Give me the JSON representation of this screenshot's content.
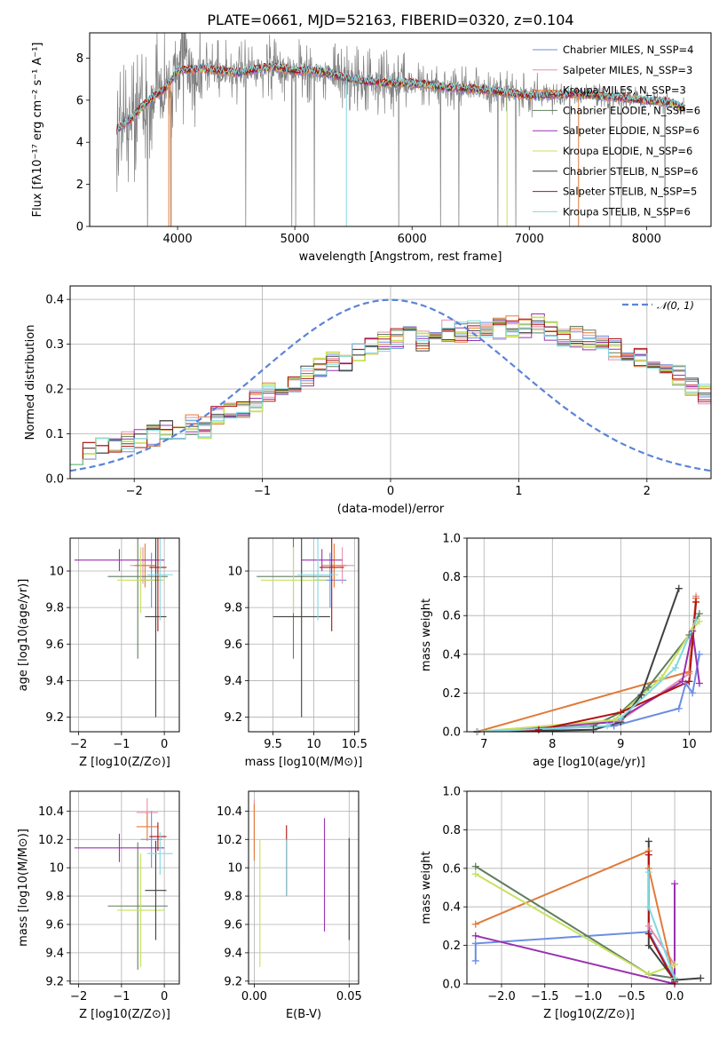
{
  "figure": {
    "title": "PLATE=0661, MJD=52163, FIBERID=0320, z=0.104"
  },
  "colors": {
    "chabrier_miles": "#6b8de3",
    "salpeter_miles": "#e68fac",
    "kroupa_miles": "#e07b39",
    "chabrier_elodie": "#5f7f5f",
    "salpeter_elodie": "#9b30b0",
    "kroupa_elodie": "#c8e060",
    "chabrier_stelib": "#404040",
    "salpeter_stelib": "#b01010",
    "kroupa_stelib": "#80d8e0",
    "gaussian": "#5b84d8",
    "data_spectrum": "#808080"
  },
  "chart_data": [
    {
      "id": "spectrum",
      "type": "line",
      "title": "PLATE=0661, MJD=52163, FIBERID=0320, z=0.104",
      "xlabel": "wavelength [Angstrom, rest frame]",
      "ylabel": "Flux [fλ10⁻¹⁷ erg cm⁻² s⁻¹ A⁻¹]",
      "xlim": [
        3250,
        8550
      ],
      "ylim": [
        0,
        9.2
      ],
      "xticks": [
        4000,
        5000,
        6000,
        7000,
        8000
      ],
      "yticks": [
        0,
        2,
        4,
        6,
        8
      ],
      "legend_position": "top-right",
      "legend": [
        {
          "label": "Chabrier MILES, N_SSP=4",
          "color": "#6b8de3"
        },
        {
          "label": "Salpeter MILES, N_SSP=3",
          "color": "#e68fac"
        },
        {
          "label": "Kroupa MILES, N_SSP=3",
          "color": "#e07b39"
        },
        {
          "label": "Chabrier ELODIE, N_SSP=6",
          "color": "#5f7f5f"
        },
        {
          "label": "Salpeter ELODIE, N_SSP=6",
          "color": "#9b30b0"
        },
        {
          "label": "Kroupa ELODIE, N_SSP=6",
          "color": "#c8e060"
        },
        {
          "label": "Chabrier STELIB, N_SSP=6",
          "color": "#404040"
        },
        {
          "label": "Salpeter STELIB, N_SSP=5",
          "color": "#b01010"
        },
        {
          "label": "Kroupa STELIB, N_SSP=6",
          "color": "#80d8e0"
        }
      ],
      "continuum": {
        "x": [
          3480,
          3600,
          3700,
          3800,
          3900,
          4000,
          4200,
          4500,
          4800,
          5000,
          5200,
          5400,
          5600,
          5800,
          6000,
          6300,
          6600,
          7000,
          7400,
          7800,
          8200,
          8330
        ],
        "y": [
          4.6,
          5.1,
          5.7,
          6.2,
          6.6,
          7.4,
          7.5,
          7.3,
          7.6,
          7.4,
          7.4,
          7.1,
          6.9,
          6.8,
          6.8,
          6.6,
          6.5,
          6.2,
          6.3,
          6.1,
          5.9,
          5.6
        ]
      },
      "data_x_range": [
        3480,
        8330
      ],
      "model_x_range": [
        3480,
        8330
      ]
    },
    {
      "id": "residuals",
      "type": "histogram",
      "xlabel": "(data-model)/error",
      "ylabel": "Normed distribution",
      "xlim": [
        -2.5,
        2.5
      ],
      "ylim": [
        0,
        0.43
      ],
      "xticks": [
        -2,
        -1,
        0,
        1,
        2
      ],
      "yticks": [
        0.0,
        0.1,
        0.2,
        0.3,
        0.4
      ],
      "grid": true,
      "legend_position": "top-right",
      "gaussian_label": "𝒩(0, 1)",
      "bin_width": 0.1,
      "bin_start": -2.5,
      "reference_values": [
        0.055,
        0.065,
        0.07,
        0.075,
        0.08,
        0.085,
        0.095,
        0.11,
        0.1,
        0.12,
        0.115,
        0.14,
        0.15,
        0.16,
        0.175,
        0.195,
        0.205,
        0.21,
        0.23,
        0.25,
        0.26,
        0.265,
        0.28,
        0.3,
        0.305,
        0.31,
        0.315,
        0.31,
        0.32,
        0.33,
        0.325,
        0.33,
        0.34,
        0.335,
        0.34,
        0.335,
        0.35,
        0.33,
        0.32,
        0.315,
        0.31,
        0.3,
        0.29,
        0.28,
        0.27,
        0.26,
        0.245,
        0.23,
        0.205,
        0.19
      ]
    },
    {
      "id": "z_vs_age",
      "type": "scatter",
      "xlabel": "Z [log10(Z/Z⊙)]",
      "ylabel": "age  [log10(age/yr)]",
      "xlim": [
        -2.2,
        0.35
      ],
      "ylim": [
        9.12,
        10.18
      ],
      "xticks": [
        -2,
        -1,
        0
      ],
      "yticks": [
        9.2,
        9.4,
        9.6,
        9.8,
        10.0
      ],
      "grid": true,
      "points": [
        {
          "model": "chabrier_miles",
          "x": -0.3,
          "y": 9.95,
          "xerr": 0.25,
          "yerr": 0.15
        },
        {
          "model": "salpeter_miles",
          "x": -0.5,
          "y": 10.03,
          "xerr": 0.3,
          "yerr": 0.1
        },
        {
          "model": "kroupa_miles",
          "x": -0.45,
          "y": 10.03,
          "xerr": 0.25,
          "yerr": 0.12
        },
        {
          "model": "chabrier_elodie",
          "x": -0.62,
          "y": 9.97,
          "xerr": 0.7,
          "yerr": 0.45
        },
        {
          "model": "salpeter_elodie",
          "x": -1.05,
          "y": 10.06,
          "xerr": 1.05,
          "yerr": 0.06
        },
        {
          "model": "kroupa_elodie",
          "x": -0.55,
          "y": 9.95,
          "xerr": 0.55,
          "yerr": 0.18
        },
        {
          "model": "chabrier_stelib",
          "x": -0.2,
          "y": 9.75,
          "xerr": 0.25,
          "yerr": 0.55
        },
        {
          "model": "salpeter_stelib",
          "x": -0.15,
          "y": 10.02,
          "xerr": 0.2,
          "yerr": 0.35
        },
        {
          "model": "kroupa_stelib",
          "x": -0.1,
          "y": 9.98,
          "xerr": 0.3,
          "yerr": 0.25
        }
      ]
    },
    {
      "id": "mass_vs_age",
      "type": "scatter",
      "xlabel": "mass [log10(M/M⊙)]",
      "ylabel": "",
      "xlim": [
        9.2,
        10.55
      ],
      "ylim": [
        9.12,
        10.18
      ],
      "xticks": [
        9.5,
        10.0,
        10.5
      ],
      "yticks": [
        9.2,
        9.4,
        9.6,
        9.8,
        10.0
      ],
      "grid": true,
      "points": [
        {
          "model": "chabrier_miles",
          "x": 10.2,
          "y": 9.95,
          "xerr": 0.2,
          "yerr": 0.15
        },
        {
          "model": "salpeter_miles",
          "x": 10.35,
          "y": 10.03,
          "xerr": 0.15,
          "yerr": 0.1
        },
        {
          "model": "kroupa_miles",
          "x": 10.25,
          "y": 10.03,
          "xerr": 0.15,
          "yerr": 0.12
        },
        {
          "model": "chabrier_elodie",
          "x": 9.75,
          "y": 9.97,
          "xerr": 0.45,
          "yerr": 0.45
        },
        {
          "model": "salpeter_elodie",
          "x": 10.1,
          "y": 10.06,
          "xerr": 0.25,
          "yerr": 0.06
        },
        {
          "model": "kroupa_elodie",
          "x": 9.75,
          "y": 9.95,
          "xerr": 0.4,
          "yerr": 0.18
        },
        {
          "model": "chabrier_stelib",
          "x": 9.85,
          "y": 9.75,
          "xerr": 0.35,
          "yerr": 0.55
        },
        {
          "model": "salpeter_stelib",
          "x": 10.22,
          "y": 10.02,
          "xerr": 0.15,
          "yerr": 0.35
        },
        {
          "model": "kroupa_stelib",
          "x": 10.05,
          "y": 9.98,
          "xerr": 0.25,
          "yerr": 0.25
        }
      ]
    },
    {
      "id": "age_weights",
      "type": "line",
      "xlabel": "age  [log10(age/yr)]",
      "ylabel": "mass weight",
      "xlim": [
        6.75,
        10.32
      ],
      "ylim": [
        0,
        1.0
      ],
      "xticks": [
        7,
        8,
        9,
        10
      ],
      "yticks": [
        0.0,
        0.2,
        0.4,
        0.6,
        0.8,
        1.0
      ],
      "grid": true,
      "series": [
        {
          "model": "chabrier_miles",
          "x": [
            6.9,
            8.9,
            9.85,
            9.95,
            10.05,
            10.15
          ],
          "y": [
            0.0,
            0.03,
            0.12,
            0.25,
            0.2,
            0.4
          ]
        },
        {
          "model": "salpeter_miles",
          "x": [
            6.9,
            9.0,
            10.0,
            10.1
          ],
          "y": [
            0.0,
            0.06,
            0.3,
            0.7
          ]
        },
        {
          "model": "kroupa_miles",
          "x": [
            6.9,
            10.0,
            10.1
          ],
          "y": [
            0.0,
            0.31,
            0.69
          ]
        },
        {
          "model": "chabrier_elodie",
          "x": [
            6.9,
            8.6,
            9.0,
            9.4,
            10.0,
            10.15
          ],
          "y": [
            0.0,
            0.03,
            0.1,
            0.23,
            0.5,
            0.61
          ]
        },
        {
          "model": "salpeter_elodie",
          "x": [
            6.9,
            8.9,
            9.9,
            10.05,
            10.15
          ],
          "y": [
            0.0,
            0.05,
            0.26,
            0.52,
            0.25
          ]
        },
        {
          "model": "kroupa_elodie",
          "x": [
            6.9,
            8.9,
            9.6,
            10.05,
            10.15
          ],
          "y": [
            0.0,
            0.06,
            0.28,
            0.53,
            0.57
          ]
        },
        {
          "model": "chabrier_stelib",
          "x": [
            6.9,
            8.6,
            9.0,
            9.3,
            9.85
          ],
          "y": [
            0.0,
            0.01,
            0.05,
            0.19,
            0.74
          ]
        },
        {
          "model": "salpeter_stelib",
          "x": [
            6.9,
            7.8,
            9.0,
            10.0,
            10.1
          ],
          "y": [
            0.0,
            0.01,
            0.1,
            0.26,
            0.67
          ]
        },
        {
          "model": "kroupa_stelib",
          "x": [
            6.9,
            8.8,
            9.0,
            9.8,
            10.1
          ],
          "y": [
            0.0,
            0.03,
            0.07,
            0.33,
            0.58
          ]
        }
      ]
    },
    {
      "id": "z_vs_mass",
      "type": "scatter",
      "xlabel": "Z [log10(Z/Z⊙)]",
      "ylabel": "mass [log10(M/M⊙)]",
      "xlim": [
        -2.2,
        0.35
      ],
      "ylim": [
        9.18,
        10.54
      ],
      "xticks": [
        -2,
        -1,
        0
      ],
      "yticks": [
        9.2,
        9.4,
        9.6,
        9.8,
        10.0,
        10.2,
        10.4
      ],
      "grid": true,
      "points": [
        {
          "model": "chabrier_miles",
          "x": -0.3,
          "y": 10.2,
          "xerr": 0.25,
          "yerr": 0.2
        },
        {
          "model": "salpeter_miles",
          "x": -0.4,
          "y": 10.39,
          "xerr": 0.25,
          "yerr": 0.1
        },
        {
          "model": "kroupa_miles",
          "x": -0.4,
          "y": 10.29,
          "xerr": 0.25,
          "yerr": 0.1
        },
        {
          "model": "chabrier_elodie",
          "x": -0.62,
          "y": 9.73,
          "xerr": 0.7,
          "yerr": 0.45
        },
        {
          "model": "salpeter_elodie",
          "x": -1.05,
          "y": 10.14,
          "xerr": 1.05,
          "yerr": 0.1
        },
        {
          "model": "kroupa_elodie",
          "x": -0.55,
          "y": 9.7,
          "xerr": 0.55,
          "yerr": 0.4
        },
        {
          "model": "chabrier_stelib",
          "x": -0.2,
          "y": 9.84,
          "xerr": 0.25,
          "yerr": 0.35
        },
        {
          "model": "salpeter_stelib",
          "x": -0.15,
          "y": 10.22,
          "xerr": 0.2,
          "yerr": 0.1
        },
        {
          "model": "kroupa_stelib",
          "x": -0.1,
          "y": 10.1,
          "xerr": 0.3,
          "yerr": 0.15
        }
      ]
    },
    {
      "id": "ebv_vs_mass",
      "type": "scatter",
      "xlabel": "E(B-V)",
      "ylabel": "",
      "xlim": [
        -0.003,
        0.055
      ],
      "ylim": [
        9.18,
        10.54
      ],
      "xticks": [
        0.0,
        0.05
      ],
      "xticklabels": [
        "0.00",
        "0.05"
      ],
      "yticks": [
        9.2,
        9.4,
        9.6,
        9.8,
        10.0,
        10.2,
        10.4
      ],
      "grid": true,
      "points": [
        {
          "model": "salpeter_miles",
          "x": 0.0,
          "y": 10.3,
          "xerr": 0,
          "yerr": 0.18
        },
        {
          "model": "kroupa_miles",
          "x": 0.0,
          "y": 10.25,
          "xerr": 0,
          "yerr": 0.2
        },
        {
          "model": "kroupa_elodie",
          "x": 0.003,
          "y": 9.75,
          "xerr": 0,
          "yerr": 0.45
        },
        {
          "model": "salpeter_stelib",
          "x": 0.017,
          "y": 10.05,
          "xerr": 0,
          "yerr": 0.25
        },
        {
          "model": "kroupa_stelib",
          "x": 0.017,
          "y": 10.0,
          "xerr": 0,
          "yerr": 0.2
        },
        {
          "model": "salpeter_elodie",
          "x": 0.037,
          "y": 9.95,
          "xerr": 0,
          "yerr": 0.4
        },
        {
          "model": "chabrier_stelib",
          "x": 0.05,
          "y": 9.85,
          "xerr": 0,
          "yerr": 0.36
        }
      ]
    },
    {
      "id": "z_weights",
      "type": "line",
      "xlabel": "Z [log10(Z/Z⊙)]",
      "ylabel": "mass weight",
      "xlim": [
        -2.4,
        0.42
      ],
      "ylim": [
        0,
        1.0
      ],
      "xticks": [
        -2.0,
        -1.5,
        -1.0,
        -0.5,
        0.0
      ],
      "xticklabels": [
        "−2.0",
        "−1.5",
        "−1.0",
        "−0.5",
        "0.0"
      ],
      "yticks": [
        0.0,
        0.2,
        0.4,
        0.6,
        0.8,
        1.0
      ],
      "grid": true,
      "series": [
        {
          "model": "chabrier_miles",
          "x": [
            -2.3,
            -2.3,
            -0.3,
            0.0
          ],
          "y": [
            0.12,
            0.21,
            0.27,
            0.02
          ]
        },
        {
          "model": "salpeter_miles",
          "x": [
            -0.3,
            0.0
          ],
          "y": [
            0.3,
            0.1
          ]
        },
        {
          "model": "kroupa_miles",
          "x": [
            -2.3,
            -0.3,
            -0.3,
            0.0
          ],
          "y": [
            0.31,
            0.69,
            0.6,
            0.02
          ]
        },
        {
          "model": "chabrier_elodie",
          "x": [
            -2.3,
            -0.3,
            0.0
          ],
          "y": [
            0.61,
            0.05,
            0.03
          ]
        },
        {
          "model": "salpeter_elodie",
          "x": [
            -2.3,
            0.0,
            0.0
          ],
          "y": [
            0.25,
            0.0,
            0.52
          ]
        },
        {
          "model": "kroupa_elodie",
          "x": [
            -2.3,
            -0.3,
            0.0
          ],
          "y": [
            0.57,
            0.05,
            0.1
          ]
        },
        {
          "model": "chabrier_stelib",
          "x": [
            -0.3,
            -0.3,
            0.0,
            0.3
          ],
          "y": [
            0.74,
            0.2,
            0.02,
            0.03
          ]
        },
        {
          "model": "salpeter_stelib",
          "x": [
            -0.3,
            -0.3,
            0.0
          ],
          "y": [
            0.67,
            0.26,
            0.01
          ]
        },
        {
          "model": "kroupa_stelib",
          "x": [
            -0.3,
            -0.3,
            0.0
          ],
          "y": [
            0.58,
            0.4,
            0.03
          ]
        }
      ]
    }
  ]
}
